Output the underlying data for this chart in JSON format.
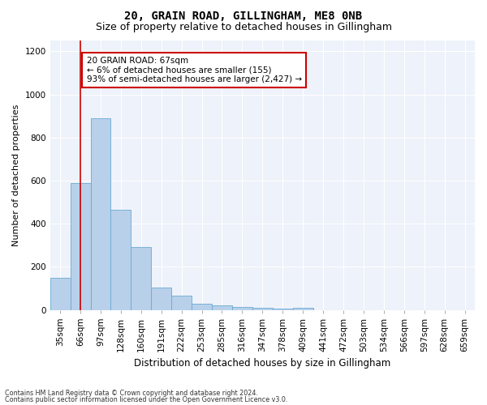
{
  "title1": "20, GRAIN ROAD, GILLINGHAM, ME8 0NB",
  "title2": "Size of property relative to detached houses in Gillingham",
  "xlabel": "Distribution of detached houses by size in Gillingham",
  "ylabel": "Number of detached properties",
  "categories": [
    "35sqm",
    "66sqm",
    "97sqm",
    "128sqm",
    "160sqm",
    "191sqm",
    "222sqm",
    "253sqm",
    "285sqm",
    "316sqm",
    "347sqm",
    "378sqm",
    "409sqm",
    "441sqm",
    "472sqm",
    "503sqm",
    "534sqm",
    "566sqm",
    "597sqm",
    "628sqm",
    "659sqm"
  ],
  "values": [
    150,
    590,
    890,
    465,
    290,
    105,
    65,
    28,
    20,
    12,
    8,
    5,
    8,
    0,
    0,
    0,
    0,
    0,
    0,
    0,
    0
  ],
  "bar_color": "#b8d0ea",
  "bar_edge_color": "#6aaad4",
  "vline_x": 1.0,
  "vline_color": "#cc0000",
  "annotation_text": "20 GRAIN ROAD: 67sqm\n← 6% of detached houses are smaller (155)\n93% of semi-detached houses are larger (2,427) →",
  "annotation_box_facecolor": "white",
  "annotation_box_edgecolor": "#cc0000",
  "ylim": [
    0,
    1250
  ],
  "yticks": [
    0,
    200,
    400,
    600,
    800,
    1000,
    1200
  ],
  "bg_color": "#eef2fa",
  "grid_color": "white",
  "footer1": "Contains HM Land Registry data © Crown copyright and database right 2024.",
  "footer2": "Contains public sector information licensed under the Open Government Licence v3.0.",
  "title1_fontsize": 10,
  "title2_fontsize": 9,
  "xlabel_fontsize": 8.5,
  "ylabel_fontsize": 8,
  "tick_fontsize": 7.5,
  "annotation_fontsize": 7.5
}
